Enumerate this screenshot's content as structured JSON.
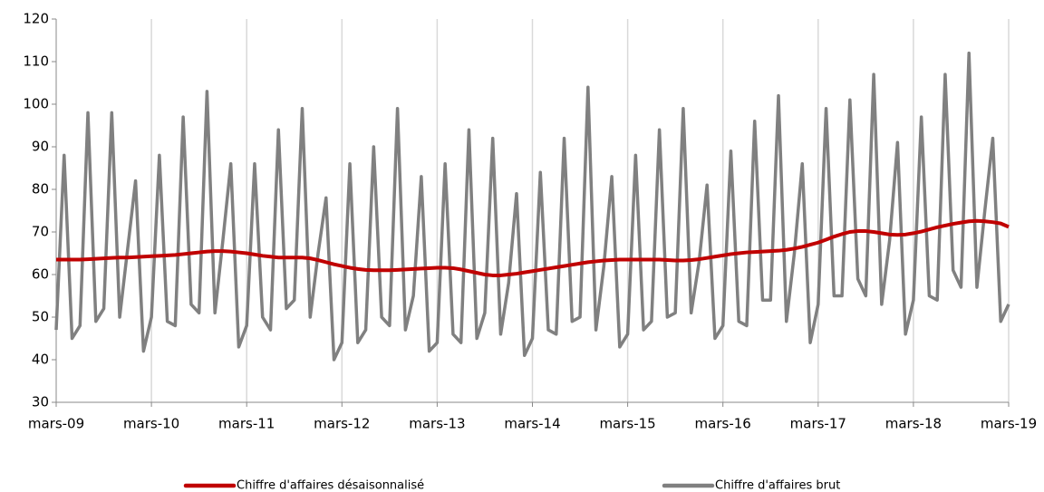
{
  "chart_data": {
    "type": "line",
    "categories": [
      "mars-09",
      null,
      null,
      null,
      null,
      null,
      null,
      null,
      null,
      null,
      null,
      null,
      "mars-10",
      null,
      null,
      null,
      null,
      null,
      null,
      null,
      null,
      null,
      null,
      null,
      "mars-11",
      null,
      null,
      null,
      null,
      null,
      null,
      null,
      null,
      null,
      null,
      null,
      "mars-12",
      null,
      null,
      null,
      null,
      null,
      null,
      null,
      null,
      null,
      null,
      null,
      "mars-13",
      null,
      null,
      null,
      null,
      null,
      null,
      null,
      null,
      null,
      null,
      null,
      "mars-14",
      null,
      null,
      null,
      null,
      null,
      null,
      null,
      null,
      null,
      null,
      null,
      "mars-15",
      null,
      null,
      null,
      null,
      null,
      null,
      null,
      null,
      null,
      null,
      null,
      "mars-16",
      null,
      null,
      null,
      null,
      null,
      null,
      null,
      null,
      null,
      null,
      null,
      "mars-17",
      null,
      null,
      null,
      null,
      null,
      null,
      null,
      null,
      null,
      null,
      null,
      "mars-18",
      null,
      null,
      null,
      null,
      null,
      null,
      null,
      null,
      null,
      null,
      null,
      "mars-19"
    ],
    "series": [
      {
        "name": "Chiffre d'affaires désaisonnalisé",
        "color": "#c00000",
        "values": [
          63.5,
          63.5,
          63.5,
          63.5,
          63.6,
          63.7,
          63.8,
          63.9,
          64.0,
          64.0,
          64.1,
          64.2,
          64.3,
          64.4,
          64.5,
          64.6,
          64.8,
          65.0,
          65.2,
          65.4,
          65.5,
          65.5,
          65.4,
          65.2,
          65.0,
          64.7,
          64.4,
          64.2,
          64.0,
          64.0,
          64.0,
          64.0,
          63.8,
          63.4,
          62.9,
          62.4,
          62.0,
          61.6,
          61.3,
          61.1,
          61.0,
          61.0,
          61.0,
          61.1,
          61.2,
          61.3,
          61.4,
          61.5,
          61.6,
          61.6,
          61.5,
          61.2,
          60.8,
          60.4,
          60.0,
          59.8,
          59.8,
          60.0,
          60.2,
          60.5,
          60.8,
          61.1,
          61.4,
          61.7,
          62.0,
          62.3,
          62.6,
          62.9,
          63.1,
          63.3,
          63.4,
          63.5,
          63.5,
          63.5,
          63.5,
          63.5,
          63.5,
          63.4,
          63.3,
          63.3,
          63.4,
          63.6,
          63.9,
          64.2,
          64.5,
          64.8,
          65.0,
          65.2,
          65.3,
          65.4,
          65.5,
          65.6,
          65.8,
          66.1,
          66.5,
          67.0,
          67.5,
          68.2,
          68.9,
          69.5,
          70.0,
          70.2,
          70.2,
          70.0,
          69.7,
          69.4,
          69.3,
          69.4,
          69.7,
          70.1,
          70.6,
          71.1,
          71.5,
          71.9,
          72.2,
          72.5,
          72.6,
          72.5,
          72.3,
          72.0,
          71.2
        ]
      },
      {
        "name": "Chiffre d'affaires brut",
        "color": "#808080",
        "values": [
          47,
          88,
          45,
          48,
          98,
          49,
          52,
          98,
          50,
          66,
          82,
          42,
          50,
          88,
          49,
          48,
          97,
          53,
          51,
          103,
          51,
          68,
          86,
          43,
          48,
          86,
          50,
          47,
          94,
          52,
          54,
          99,
          50,
          65,
          78,
          40,
          44,
          86,
          44,
          47,
          90,
          50,
          48,
          99,
          47,
          55,
          83,
          42,
          44,
          86,
          46,
          44,
          94,
          45,
          51,
          92,
          46,
          58,
          79,
          41,
          45,
          84,
          47,
          46,
          92,
          49,
          50,
          104,
          47,
          62,
          83,
          43,
          46,
          88,
          47,
          49,
          94,
          50,
          51,
          99,
          51,
          63,
          81,
          45,
          48,
          89,
          49,
          48,
          96,
          54,
          54,
          102,
          49,
          65,
          86,
          44,
          53,
          99,
          55,
          55,
          101,
          59,
          55,
          107,
          53,
          68,
          91,
          46,
          54,
          97,
          55,
          54,
          107,
          61,
          57,
          112,
          57,
          75,
          92,
          49,
          53
        ]
      }
    ],
    "ylim": [
      30,
      120
    ],
    "yticks": [
      30,
      40,
      50,
      60,
      70,
      80,
      90,
      100,
      110,
      120
    ],
    "grid": "vertical",
    "legend": "bottom"
  }
}
